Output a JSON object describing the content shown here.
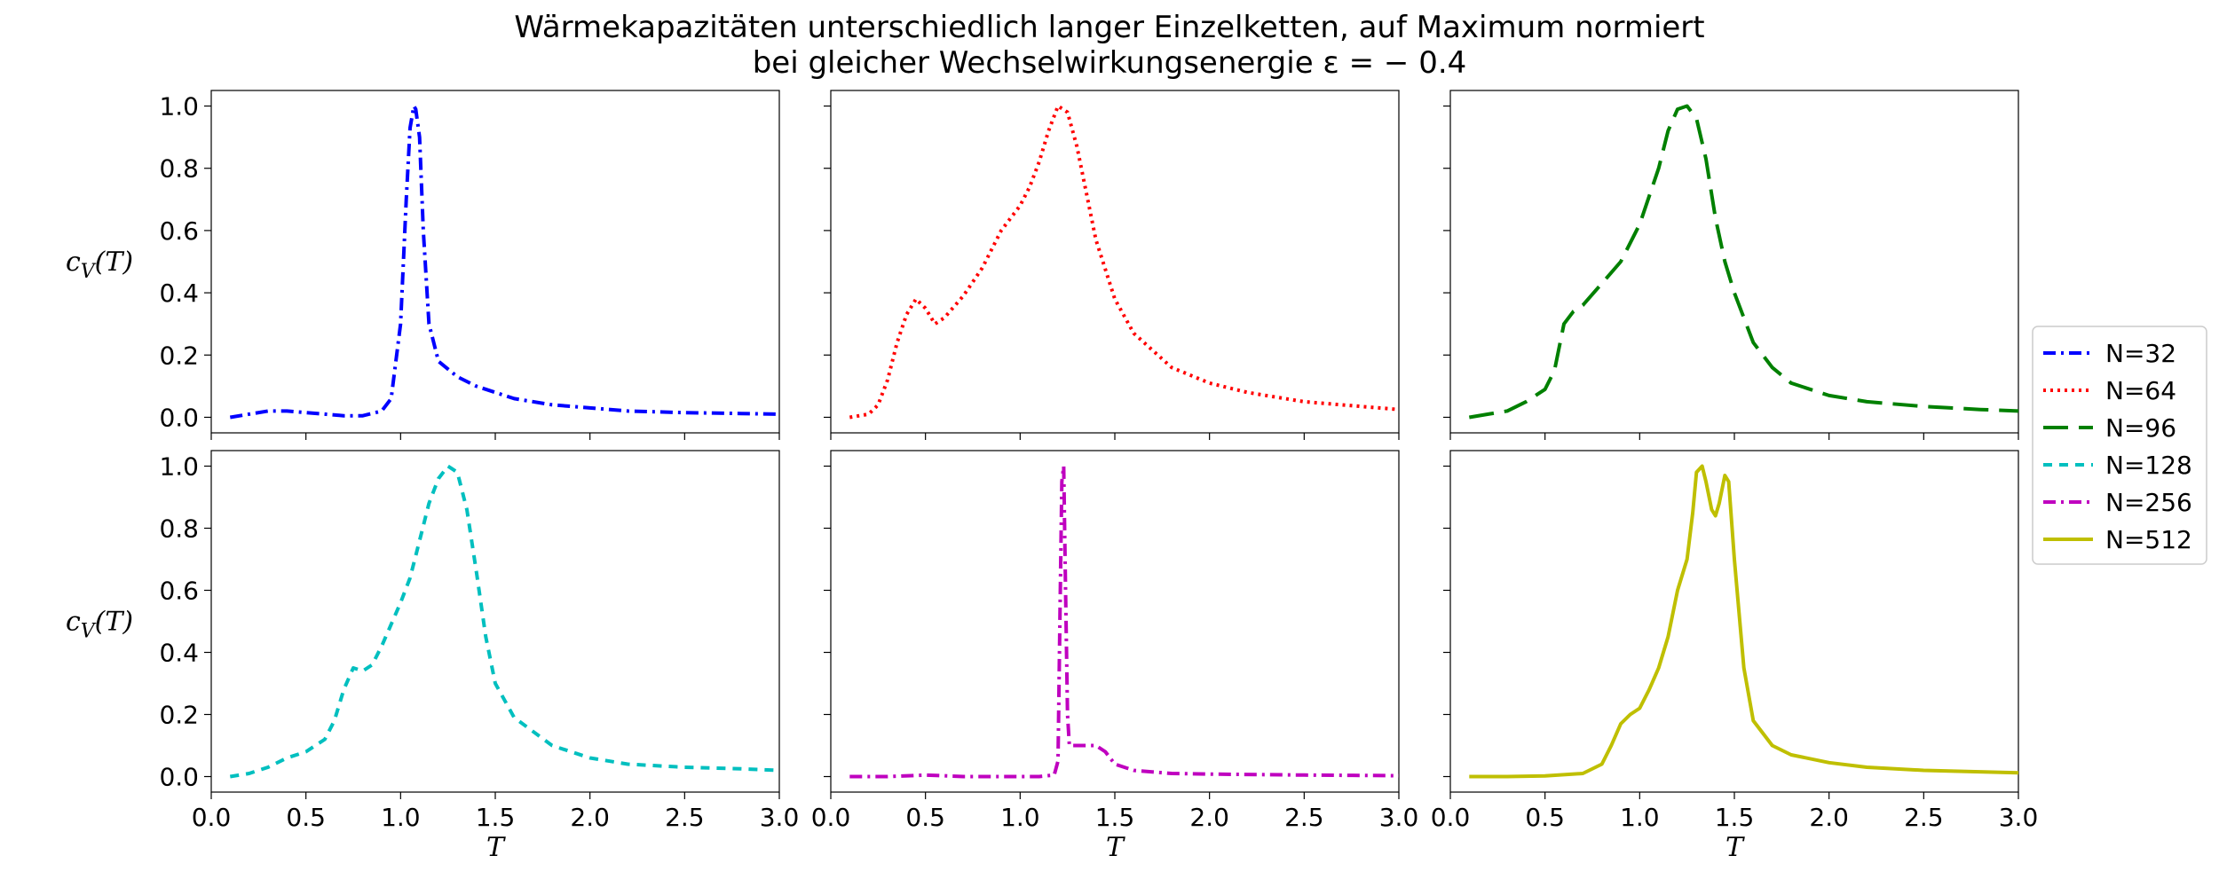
{
  "figure": {
    "title_line1": "Wärmekapazitäten unterschiedlich langer Einzelketten, auf Maximum normiert",
    "title_line2": "bei gleicher Wechselwirkungsenergie ε = − 0.4"
  },
  "chart_data": [
    {
      "type": "line",
      "panel": "top-left",
      "series": [
        {
          "name": "N=32",
          "color": "#0000ff",
          "dash": "dashdot",
          "x": [
            0.1,
            0.2,
            0.3,
            0.4,
            0.5,
            0.6,
            0.7,
            0.8,
            0.9,
            0.95,
            1.0,
            1.03,
            1.05,
            1.07,
            1.08,
            1.1,
            1.12,
            1.15,
            1.2,
            1.3,
            1.4,
            1.5,
            1.6,
            1.8,
            2.0,
            2.2,
            2.5,
            2.8,
            3.0
          ],
          "y": [
            0.0,
            0.01,
            0.02,
            0.02,
            0.015,
            0.01,
            0.005,
            0.005,
            0.02,
            0.06,
            0.3,
            0.7,
            0.93,
            1.0,
            0.99,
            0.9,
            0.6,
            0.3,
            0.18,
            0.13,
            0.1,
            0.08,
            0.06,
            0.04,
            0.03,
            0.02,
            0.015,
            0.012,
            0.01
          ]
        }
      ],
      "xlim": [
        0,
        3.0
      ],
      "ylim": [
        -0.05,
        1.05
      ],
      "xlabel": "",
      "ylabel": "c_V(T)"
    },
    {
      "type": "line",
      "panel": "top-middle",
      "series": [
        {
          "name": "N=64",
          "color": "#ff0000",
          "dash": "dotted",
          "x": [
            0.1,
            0.2,
            0.25,
            0.3,
            0.35,
            0.4,
            0.45,
            0.5,
            0.55,
            0.6,
            0.7,
            0.8,
            0.9,
            1.0,
            1.05,
            1.1,
            1.15,
            1.2,
            1.25,
            1.3,
            1.35,
            1.4,
            1.5,
            1.6,
            1.8,
            2.0,
            2.2,
            2.5,
            2.8,
            3.0
          ],
          "y": [
            0.0,
            0.01,
            0.04,
            0.12,
            0.24,
            0.33,
            0.38,
            0.35,
            0.3,
            0.32,
            0.39,
            0.48,
            0.6,
            0.68,
            0.74,
            0.82,
            0.92,
            1.0,
            0.98,
            0.87,
            0.72,
            0.57,
            0.38,
            0.27,
            0.16,
            0.11,
            0.08,
            0.05,
            0.035,
            0.025
          ]
        }
      ],
      "xlim": [
        0,
        3.0
      ],
      "ylim": [
        -0.05,
        1.05
      ],
      "xlabel": "",
      "ylabel": ""
    },
    {
      "type": "line",
      "panel": "top-right",
      "series": [
        {
          "name": "N=96",
          "color": "#008000",
          "dash": "longdash",
          "x": [
            0.1,
            0.2,
            0.3,
            0.4,
            0.5,
            0.55,
            0.6,
            0.65,
            0.7,
            0.8,
            0.9,
            1.0,
            1.1,
            1.15,
            1.2,
            1.25,
            1.3,
            1.35,
            1.4,
            1.45,
            1.5,
            1.6,
            1.7,
            1.8,
            2.0,
            2.2,
            2.5,
            2.8,
            3.0
          ],
          "y": [
            0.0,
            0.01,
            0.02,
            0.05,
            0.09,
            0.15,
            0.3,
            0.34,
            0.36,
            0.43,
            0.5,
            0.62,
            0.8,
            0.92,
            0.99,
            1.0,
            0.96,
            0.83,
            0.64,
            0.5,
            0.4,
            0.24,
            0.16,
            0.11,
            0.07,
            0.05,
            0.035,
            0.025,
            0.02
          ]
        }
      ],
      "xlim": [
        0,
        3.0
      ],
      "ylim": [
        -0.05,
        1.05
      ],
      "xlabel": "",
      "ylabel": ""
    },
    {
      "type": "line",
      "panel": "bottom-left",
      "series": [
        {
          "name": "N=128",
          "color": "#00bfbf",
          "dash": "dashed",
          "x": [
            0.1,
            0.2,
            0.3,
            0.4,
            0.5,
            0.6,
            0.65,
            0.7,
            0.75,
            0.8,
            0.85,
            0.9,
            1.0,
            1.05,
            1.1,
            1.15,
            1.2,
            1.25,
            1.3,
            1.35,
            1.4,
            1.45,
            1.5,
            1.6,
            1.8,
            2.0,
            2.2,
            2.5,
            2.8,
            3.0
          ],
          "y": [
            0.0,
            0.01,
            0.03,
            0.06,
            0.08,
            0.12,
            0.18,
            0.28,
            0.35,
            0.34,
            0.36,
            0.42,
            0.56,
            0.64,
            0.76,
            0.88,
            0.96,
            1.0,
            0.98,
            0.86,
            0.66,
            0.45,
            0.3,
            0.19,
            0.1,
            0.06,
            0.04,
            0.03,
            0.025,
            0.02
          ]
        }
      ],
      "xlim": [
        0,
        3.0
      ],
      "ylim": [
        -0.05,
        1.05
      ],
      "xlabel": "T",
      "ylabel": "c_V(T)"
    },
    {
      "type": "line",
      "panel": "bottom-middle",
      "series": [
        {
          "name": "N=256",
          "color": "#bf00bf",
          "dash": "dashdot",
          "x": [
            0.1,
            0.3,
            0.5,
            0.7,
            0.9,
            1.0,
            1.1,
            1.18,
            1.2,
            1.21,
            1.22,
            1.23,
            1.24,
            1.25,
            1.26,
            1.3,
            1.35,
            1.4,
            1.45,
            1.5,
            1.6,
            1.8,
            2.0,
            2.5,
            3.0
          ],
          "y": [
            0.0,
            0.0,
            0.005,
            0.0,
            0.0,
            0.0,
            0.0,
            0.005,
            0.05,
            0.5,
            0.95,
            1.0,
            0.6,
            0.2,
            0.1,
            0.1,
            0.1,
            0.1,
            0.08,
            0.04,
            0.02,
            0.01,
            0.008,
            0.005,
            0.003
          ]
        }
      ],
      "xlim": [
        0,
        3.0
      ],
      "ylim": [
        -0.05,
        1.05
      ],
      "xlabel": "T",
      "ylabel": ""
    },
    {
      "type": "line",
      "panel": "bottom-right",
      "series": [
        {
          "name": "N=512",
          "color": "#bfbf00",
          "dash": "solid",
          "x": [
            0.1,
            0.3,
            0.5,
            0.7,
            0.8,
            0.85,
            0.9,
            0.95,
            1.0,
            1.05,
            1.1,
            1.15,
            1.2,
            1.25,
            1.28,
            1.3,
            1.33,
            1.35,
            1.38,
            1.4,
            1.42,
            1.45,
            1.47,
            1.5,
            1.55,
            1.6,
            1.7,
            1.8,
            2.0,
            2.2,
            2.5,
            3.0
          ],
          "y": [
            0.0,
            0.0,
            0.002,
            0.01,
            0.04,
            0.1,
            0.17,
            0.2,
            0.22,
            0.28,
            0.35,
            0.45,
            0.6,
            0.7,
            0.85,
            0.98,
            1.0,
            0.95,
            0.86,
            0.84,
            0.88,
            0.97,
            0.95,
            0.7,
            0.35,
            0.18,
            0.1,
            0.07,
            0.045,
            0.03,
            0.02,
            0.012
          ]
        }
      ],
      "xlim": [
        0,
        3.0
      ],
      "ylim": [
        -0.05,
        1.05
      ],
      "xlabel": "T",
      "ylabel": ""
    }
  ],
  "legend": {
    "placement": "right",
    "entries": [
      {
        "label": "N=32",
        "color": "#0000ff",
        "dash": "dashdot"
      },
      {
        "label": "N=64",
        "color": "#ff0000",
        "dash": "dotted"
      },
      {
        "label": "N=96",
        "color": "#008000",
        "dash": "longdash"
      },
      {
        "label": "N=128",
        "color": "#00bfbf",
        "dash": "dashed"
      },
      {
        "label": "N=256",
        "color": "#bf00bf",
        "dash": "dashdot"
      },
      {
        "label": "N=512",
        "color": "#bfbf00",
        "dash": "solid"
      }
    ]
  }
}
